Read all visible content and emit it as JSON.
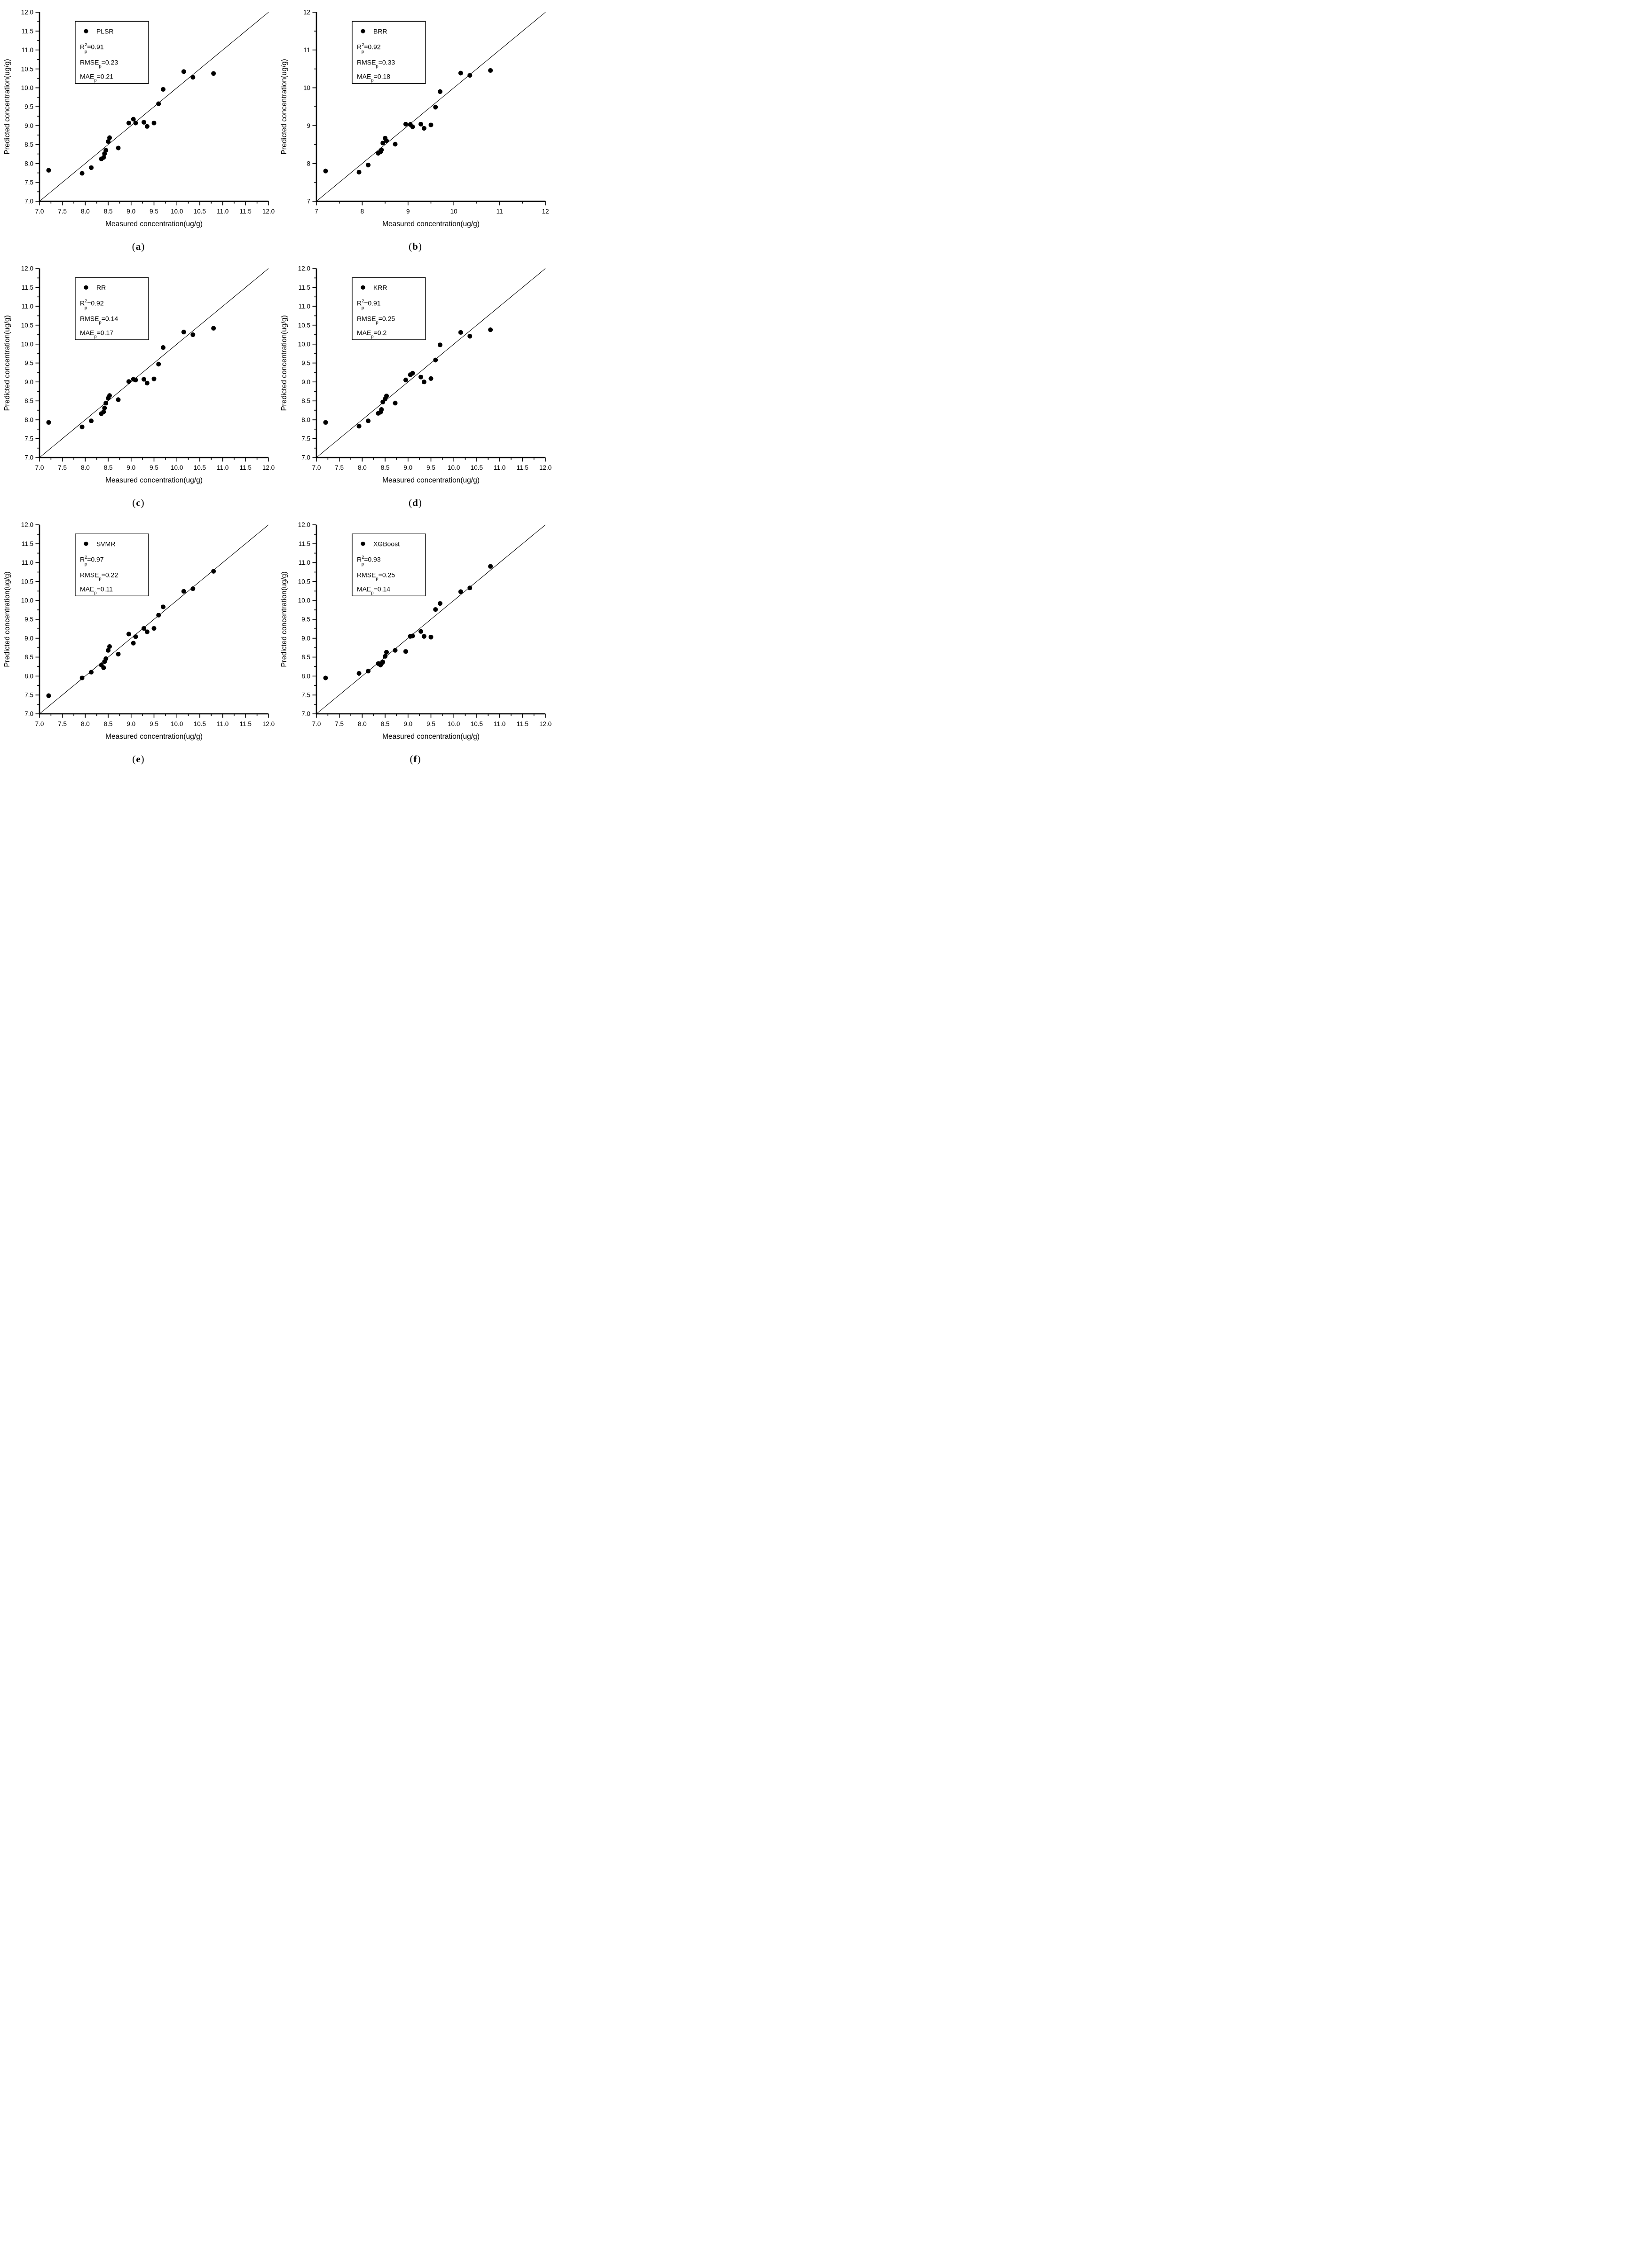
{
  "figure": {
    "xlabel": "Measured concentration(ug/g)",
    "ylabel": "Predicted concentration(ug/g)",
    "xlim": [
      7,
      12
    ],
    "ylim": [
      7,
      12
    ],
    "grid": "off",
    "identity_line": true,
    "marker_color": "#000000",
    "line_color": "#000000",
    "stat_labels": {
      "r2_base": "R",
      "r2_sup": "2",
      "sub_p": "p",
      "rmse_base": "RMSE",
      "mae_base": "MAE",
      "equals": "="
    }
  },
  "chart_data": [
    {
      "type": "scatter",
      "caption": {
        "open": "(",
        "letter": "a",
        "close": ")"
      },
      "legend": {
        "label": "PLSR",
        "position": "upper-left",
        "marker": "dot-icon"
      },
      "stats": {
        "r2": "0.91",
        "rmse": "0.23",
        "mae": "0.21"
      },
      "axes": {
        "label_step": 0.5,
        "minor_step": 0.25,
        "decimals": 1
      },
      "xlim": [
        7,
        12
      ],
      "ylim": [
        7,
        12
      ],
      "points": [
        [
          7.2,
          7.82
        ],
        [
          7.93,
          7.74
        ],
        [
          8.13,
          7.89
        ],
        [
          8.35,
          8.12
        ],
        [
          8.4,
          8.16
        ],
        [
          8.42,
          8.26
        ],
        [
          8.45,
          8.35
        ],
        [
          8.5,
          8.58
        ],
        [
          8.53,
          8.68
        ],
        [
          8.72,
          8.41
        ],
        [
          8.95,
          9.07
        ],
        [
          9.05,
          9.17
        ],
        [
          9.1,
          9.07
        ],
        [
          9.28,
          9.09
        ],
        [
          9.35,
          8.98
        ],
        [
          9.5,
          9.07
        ],
        [
          9.6,
          9.58
        ],
        [
          9.7,
          9.96
        ],
        [
          10.15,
          10.43
        ],
        [
          10.35,
          10.28
        ],
        [
          10.8,
          10.38
        ]
      ]
    },
    {
      "type": "scatter",
      "caption": {
        "open": "(",
        "letter": "b",
        "close": ")"
      },
      "legend": {
        "label": "BRR",
        "position": "upper-left",
        "marker": "dot-icon"
      },
      "stats": {
        "r2": "0.92",
        "rmse": "0.33",
        "mae": "0.18"
      },
      "axes": {
        "label_step": 1,
        "minor_step": 0.5,
        "decimals": 0
      },
      "xlim": [
        7,
        12
      ],
      "ylim": [
        7,
        12
      ],
      "points": [
        [
          7.2,
          7.8
        ],
        [
          7.93,
          7.77
        ],
        [
          8.13,
          7.96
        ],
        [
          8.35,
          8.27
        ],
        [
          8.4,
          8.31
        ],
        [
          8.42,
          8.36
        ],
        [
          8.45,
          8.54
        ],
        [
          8.5,
          8.67
        ],
        [
          8.53,
          8.6
        ],
        [
          8.72,
          8.51
        ],
        [
          8.95,
          9.04
        ],
        [
          9.05,
          9.03
        ],
        [
          9.1,
          8.97
        ],
        [
          9.28,
          9.04
        ],
        [
          9.35,
          8.93
        ],
        [
          9.5,
          9.02
        ],
        [
          9.6,
          9.49
        ],
        [
          9.7,
          9.9
        ],
        [
          10.15,
          10.39
        ],
        [
          10.35,
          10.33
        ],
        [
          10.8,
          10.46
        ]
      ]
    },
    {
      "type": "scatter",
      "caption": {
        "open": "(",
        "letter": "c",
        "close": ")"
      },
      "legend": {
        "label": "RR",
        "position": "upper-left",
        "marker": "dot-icon"
      },
      "stats": {
        "r2": "0.92",
        "rmse": "0.14",
        "mae": "0.17"
      },
      "axes": {
        "label_step": 0.5,
        "minor_step": 0.25,
        "decimals": 1
      },
      "xlim": [
        7,
        12
      ],
      "ylim": [
        7,
        12
      ],
      "points": [
        [
          7.2,
          7.93
        ],
        [
          7.93,
          7.81
        ],
        [
          8.13,
          7.97
        ],
        [
          8.35,
          8.16
        ],
        [
          8.4,
          8.21
        ],
        [
          8.42,
          8.31
        ],
        [
          8.45,
          8.44
        ],
        [
          8.5,
          8.57
        ],
        [
          8.53,
          8.64
        ],
        [
          8.72,
          8.53
        ],
        [
          8.95,
          9.01
        ],
        [
          9.05,
          9.07
        ],
        [
          9.1,
          9.05
        ],
        [
          9.28,
          9.07
        ],
        [
          9.35,
          8.97
        ],
        [
          9.5,
          9.08
        ],
        [
          9.6,
          9.47
        ],
        [
          9.7,
          9.91
        ],
        [
          10.15,
          10.32
        ],
        [
          10.35,
          10.25
        ],
        [
          10.8,
          10.42
        ]
      ]
    },
    {
      "type": "scatter",
      "caption": {
        "open": "(",
        "letter": "d",
        "close": ")"
      },
      "legend": {
        "label": "KRR",
        "position": "upper-left",
        "marker": "dot-icon"
      },
      "stats": {
        "r2": "0.91",
        "rmse": "0.25",
        "mae": "0.2"
      },
      "axes": {
        "label_step": 0.5,
        "minor_step": 0.25,
        "decimals": 1
      },
      "xlim": [
        7,
        12
      ],
      "ylim": [
        7,
        12
      ],
      "points": [
        [
          7.2,
          7.93
        ],
        [
          7.93,
          7.83
        ],
        [
          8.13,
          7.97
        ],
        [
          8.35,
          8.17
        ],
        [
          8.4,
          8.2
        ],
        [
          8.42,
          8.27
        ],
        [
          8.45,
          8.47
        ],
        [
          8.5,
          8.55
        ],
        [
          8.53,
          8.63
        ],
        [
          8.72,
          8.44
        ],
        [
          8.95,
          9.05
        ],
        [
          9.05,
          9.19
        ],
        [
          9.1,
          9.23
        ],
        [
          9.28,
          9.13
        ],
        [
          9.35,
          9.0
        ],
        [
          9.5,
          9.09
        ],
        [
          9.6,
          9.58
        ],
        [
          9.7,
          9.98
        ],
        [
          10.15,
          10.31
        ],
        [
          10.35,
          10.21
        ],
        [
          10.8,
          10.38
        ]
      ]
    },
    {
      "type": "scatter",
      "caption": {
        "open": "(",
        "letter": "e",
        "close": ")"
      },
      "legend": {
        "label": "SVMR",
        "position": "upper-left",
        "marker": "dot-icon"
      },
      "stats": {
        "r2": "0.97",
        "rmse": "0.22",
        "mae": "0.11"
      },
      "axes": {
        "label_step": 0.5,
        "minor_step": 0.25,
        "decimals": 1
      },
      "xlim": [
        7,
        12
      ],
      "ylim": [
        7,
        12
      ],
      "points": [
        [
          7.2,
          7.48
        ],
        [
          7.93,
          7.95
        ],
        [
          8.13,
          8.1
        ],
        [
          8.35,
          8.29
        ],
        [
          8.4,
          8.22
        ],
        [
          8.42,
          8.38
        ],
        [
          8.45,
          8.46
        ],
        [
          8.5,
          8.68
        ],
        [
          8.53,
          8.78
        ],
        [
          8.72,
          8.58
        ],
        [
          8.95,
          9.11
        ],
        [
          9.05,
          8.87
        ],
        [
          9.1,
          9.04
        ],
        [
          9.28,
          9.26
        ],
        [
          9.35,
          9.17
        ],
        [
          9.5,
          9.26
        ],
        [
          9.6,
          9.61
        ],
        [
          9.7,
          9.83
        ],
        [
          10.15,
          10.24
        ],
        [
          10.35,
          10.31
        ],
        [
          10.8,
          10.77
        ]
      ]
    },
    {
      "type": "scatter",
      "caption": {
        "open": "(",
        "letter": "f",
        "close": ")"
      },
      "legend": {
        "label": "XGBoost",
        "position": "upper-left",
        "marker": "dot-icon"
      },
      "stats": {
        "r2": "0.93",
        "rmse": "0.25",
        "mae": "0.14"
      },
      "axes": {
        "label_step": 0.5,
        "minor_step": 0.25,
        "decimals": 1
      },
      "xlim": [
        7,
        12
      ],
      "ylim": [
        7,
        12
      ],
      "points": [
        [
          7.2,
          7.95
        ],
        [
          7.93,
          8.07
        ],
        [
          8.13,
          8.13
        ],
        [
          8.35,
          8.33
        ],
        [
          8.4,
          8.29
        ],
        [
          8.42,
          8.33
        ],
        [
          8.45,
          8.37
        ],
        [
          8.5,
          8.52
        ],
        [
          8.53,
          8.63
        ],
        [
          8.72,
          8.68
        ],
        [
          8.95,
          8.65
        ],
        [
          9.05,
          9.05
        ],
        [
          9.1,
          9.06
        ],
        [
          9.28,
          9.18
        ],
        [
          9.35,
          9.05
        ],
        [
          9.5,
          9.03
        ],
        [
          9.6,
          9.76
        ],
        [
          9.7,
          9.92
        ],
        [
          10.15,
          10.23
        ],
        [
          10.35,
          10.33
        ],
        [
          10.8,
          10.9
        ]
      ]
    }
  ]
}
